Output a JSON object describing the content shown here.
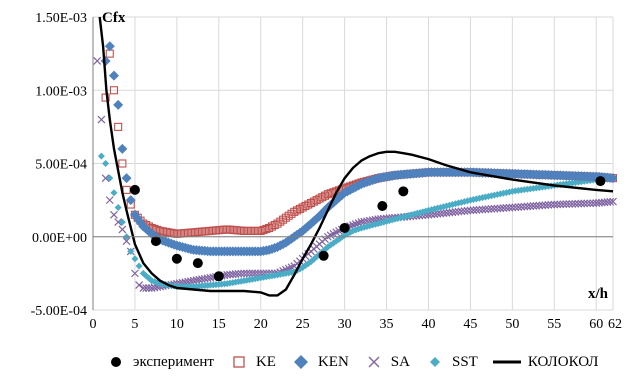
{
  "chart_data": {
    "type": "scatter",
    "title": "",
    "ylabel": "Cfx",
    "xlabel": "x/h",
    "xlim": [
      0,
      62
    ],
    "ylim": [
      -0.0005,
      0.0015
    ],
    "x_ticks": [
      0,
      5,
      10,
      15,
      20,
      25,
      30,
      35,
      40,
      45,
      50,
      55,
      60
    ],
    "x_tick_labels": [
      "0",
      "5",
      "10",
      "15",
      "20",
      "25",
      "30",
      "35",
      "40",
      "45",
      "50",
      "55",
      "60"
    ],
    "x_last_tick_label": "62",
    "y_ticks": [
      -0.0005,
      0,
      0.0005,
      0.001,
      0.0015
    ],
    "y_tick_labels": [
      "-5.00E-04",
      "0.00E+00",
      "5.00E-04",
      "1.00E-03",
      "1.50E-03"
    ],
    "grid": true,
    "legend_position": "bottom",
    "series": [
      {
        "name": "эксперимент",
        "marker": "filled-circle",
        "color": "#000000",
        "x": [
          5,
          7.5,
          10,
          12.5,
          15,
          27.5,
          30,
          34.5,
          37,
          60.5
        ],
        "y": [
          0.00032,
          -3e-05,
          -0.00015,
          -0.00018,
          -0.00027,
          -0.00013,
          6e-05,
          0.00021,
          0.00031,
          0.00038
        ]
      },
      {
        "name": "KE",
        "marker": "open-square",
        "color": "#c0504d",
        "x": [
          1.5,
          2,
          2.5,
          3,
          3.5,
          4,
          4.5,
          5,
          6,
          7,
          8,
          9,
          10,
          12,
          14,
          16,
          18,
          20,
          21,
          22,
          23,
          24,
          25,
          26,
          27,
          28,
          30,
          32,
          34,
          36,
          40,
          45,
          50,
          55,
          60,
          62
        ],
        "y": [
          0.00095,
          0.00125,
          0.001,
          0.00075,
          0.0005,
          0.00032,
          0.00022,
          0.00015,
          9e-05,
          6e-05,
          4e-05,
          3e-05,
          2e-05,
          3e-05,
          4e-05,
          5e-05,
          4e-05,
          4e-05,
          6e-05,
          9e-05,
          0.00013,
          0.00017,
          0.0002,
          0.00023,
          0.00026,
          0.00029,
          0.00033,
          0.00037,
          0.0004,
          0.00042,
          0.00044,
          0.00044,
          0.00043,
          0.00042,
          0.00041,
          0.0004
        ]
      },
      {
        "name": "KEN",
        "marker": "filled-diamond",
        "color": "#4f81bd",
        "x": [
          1.5,
          2,
          2.5,
          3,
          3.5,
          4,
          4.5,
          5,
          6,
          7,
          8,
          9,
          10,
          12,
          14,
          16,
          18,
          20,
          21,
          22,
          23,
          24,
          25,
          26,
          27,
          28,
          29,
          30,
          32,
          34,
          36,
          40,
          45,
          50,
          55,
          60,
          62
        ],
        "y": [
          0.0012,
          0.0013,
          0.0011,
          0.0009,
          0.0006,
          0.0004,
          0.00025,
          0.00015,
          7e-05,
          2e-05,
          -2e-05,
          -4e-05,
          -6e-05,
          -9e-05,
          -0.0001,
          -0.0001,
          -0.0001,
          -0.0001,
          -9e-05,
          -7e-05,
          -4e-05,
          0,
          4e-05,
          9e-05,
          0.00014,
          0.0002,
          0.00025,
          0.0003,
          0.00036,
          0.0004,
          0.00042,
          0.00044,
          0.00044,
          0.00043,
          0.00042,
          0.00041,
          0.0004
        ]
      },
      {
        "name": "SA",
        "marker": "cross",
        "color": "#8064a2",
        "x": [
          0.5,
          1,
          1.5,
          2,
          2.5,
          3,
          3.5,
          4,
          4.5,
          5,
          5.5,
          6,
          7,
          8,
          9,
          10,
          12,
          14,
          16,
          18,
          20,
          22,
          24,
          26,
          28,
          30,
          32,
          34,
          36,
          40,
          45,
          50,
          55,
          60,
          62
        ],
        "y": [
          0.0012,
          0.0008,
          0.0004,
          0.00025,
          0.00015,
          0.0001,
          5e-05,
          -3e-05,
          -0.0001,
          -0.00025,
          -0.00033,
          -0.00035,
          -0.00035,
          -0.00034,
          -0.00033,
          -0.00032,
          -0.0003,
          -0.00028,
          -0.00026,
          -0.00025,
          -0.00025,
          -0.00025,
          -0.0002,
          -0.0001,
          0,
          6e-05,
          0.0001,
          0.00012,
          0.00013,
          0.00015,
          0.00018,
          0.0002,
          0.00022,
          0.00023,
          0.00024
        ]
      },
      {
        "name": "SST",
        "marker": "filled-diamond-small",
        "color": "#4bacc6",
        "x": [
          1,
          1.5,
          2,
          2.5,
          3,
          3.5,
          4,
          4.5,
          5,
          5.5,
          6,
          7,
          8,
          9,
          10,
          11,
          12,
          14,
          16,
          18,
          20,
          22,
          24,
          25,
          26,
          27,
          28,
          29,
          30,
          31,
          32,
          34,
          36,
          38,
          40,
          45,
          50,
          55,
          60,
          62
        ],
        "y": [
          0.00055,
          0.0005,
          0.0004,
          0.0003,
          0.0002,
          0.0001,
          0,
          -0.0001,
          -0.00015,
          -0.0002,
          -0.00025,
          -0.0003,
          -0.00032,
          -0.00033,
          -0.00034,
          -0.00034,
          -0.00034,
          -0.00033,
          -0.00032,
          -0.0003,
          -0.00028,
          -0.00026,
          -0.00024,
          -0.00021,
          -0.00017,
          -0.00012,
          -7e-05,
          -3e-05,
          1e-05,
          4e-05,
          6e-05,
          9e-05,
          0.00012,
          0.00015,
          0.00018,
          0.00025,
          0.00031,
          0.00035,
          0.00039,
          0.0004
        ]
      },
      {
        "name": "КОЛОКОЛ",
        "marker": "line",
        "color": "#000000",
        "x": [
          0.8,
          1.2,
          1.6,
          2,
          2.5,
          3,
          3.5,
          4,
          5,
          6,
          7,
          8,
          9,
          10,
          12,
          14,
          16,
          18,
          20,
          21,
          22,
          23,
          24,
          25,
          26,
          27,
          28,
          29,
          30,
          31,
          32,
          33,
          34,
          35,
          36,
          37,
          38,
          40,
          42,
          45,
          50,
          55,
          60,
          62
        ],
        "y": [
          0.0015,
          0.0013,
          0.001,
          0.0008,
          0.0006,
          0.00045,
          0.0003,
          0.00018,
          -5e-05,
          -0.00018,
          -0.00025,
          -0.0003,
          -0.00033,
          -0.00035,
          -0.00036,
          -0.00037,
          -0.00037,
          -0.00037,
          -0.00038,
          -0.0004,
          -0.0004,
          -0.00036,
          -0.00026,
          -0.00015,
          -5e-05,
          6e-05,
          0.00018,
          0.0003,
          0.0004,
          0.00047,
          0.00052,
          0.00055,
          0.00057,
          0.00058,
          0.00058,
          0.00057,
          0.00056,
          0.00053,
          0.00049,
          0.00044,
          0.00039,
          0.00035,
          0.00032,
          0.00031
        ]
      }
    ]
  }
}
